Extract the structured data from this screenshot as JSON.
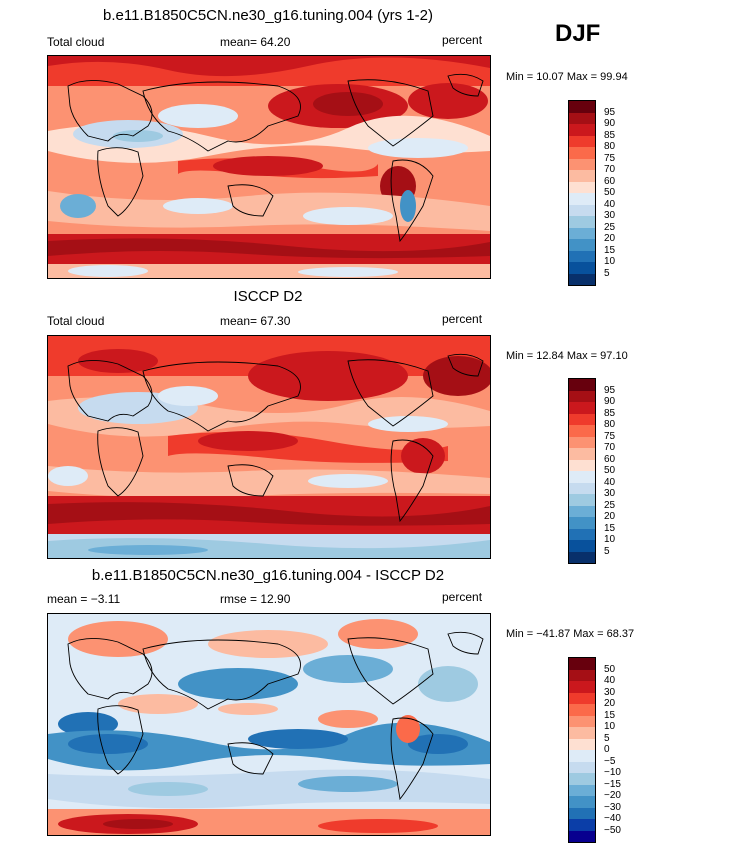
{
  "season": "DJF",
  "panels": [
    {
      "title": "b.e11.B1850C5CN.ne30_g16.tuning.004 (yrs 1-2)",
      "left_label": "Total cloud",
      "mid_label": "mean=  64.20",
      "right_label": "percent",
      "minmax": "Min =   10.07  Max =   99.94"
    },
    {
      "title": "ISCCP D2",
      "left_label": "Total cloud",
      "mid_label": "mean=  67.30",
      "right_label": "percent",
      "minmax": "Min =   12.84  Max =   97.10"
    },
    {
      "title": "b.e11.B1850C5CN.ne30_g16.tuning.004 - ISCCP D2",
      "left_label": "mean =   −3.11",
      "mid_label": "rmse =   12.90",
      "right_label": "percent",
      "minmax": "Min =  −41.87  Max =   68.37"
    }
  ],
  "colorbars": {
    "abs": {
      "labels": [
        "95",
        "90",
        "85",
        "80",
        "75",
        "70",
        "60",
        "50",
        "40",
        "30",
        "25",
        "20",
        "15",
        "10",
        "5"
      ],
      "colors": [
        "#67000d",
        "#a50f15",
        "#cb181d",
        "#ef3b2c",
        "#fb6a4a",
        "#fc9272",
        "#fcbba1",
        "#fee0d2",
        "#deebf7",
        "#c6dbef",
        "#9ecae1",
        "#6baed6",
        "#4292c6",
        "#2171b5",
        "#08519c",
        "#08306b"
      ]
    },
    "diff": {
      "labels": [
        "50",
        "40",
        "30",
        "20",
        "15",
        "10",
        "5",
        "0",
        "−5",
        "−10",
        "−15",
        "−20",
        "−30",
        "−40",
        "−50"
      ],
      "colors": [
        "#67000d",
        "#a50f15",
        "#cb181d",
        "#ef3b2c",
        "#fb6a4a",
        "#fc9272",
        "#fcbba1",
        "#fee0d2",
        "#deebf7",
        "#c6dbef",
        "#9ecae1",
        "#6baed6",
        "#4292c6",
        "#2171b5",
        "#0b3ea8",
        "#08008f"
      ]
    }
  }
}
